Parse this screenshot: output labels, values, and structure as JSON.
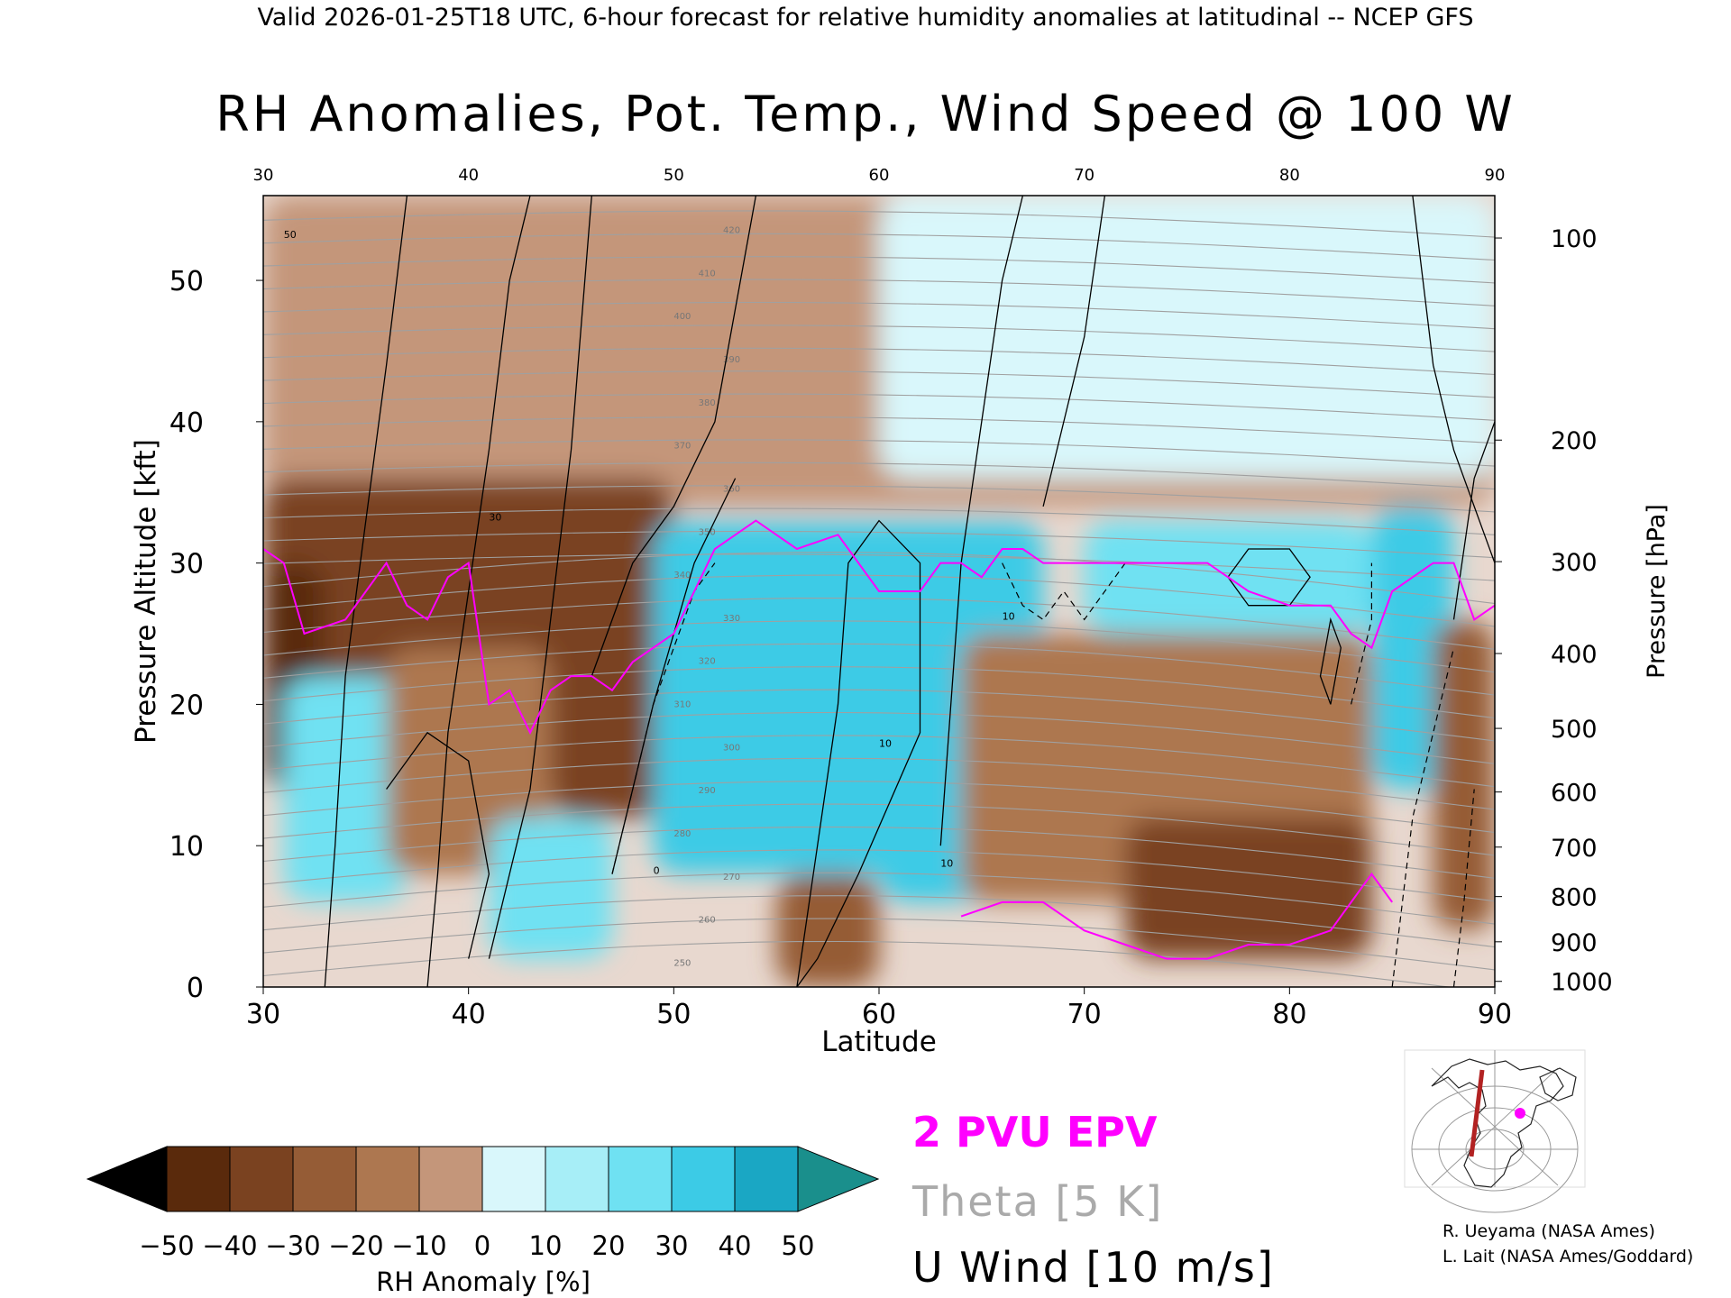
{
  "header": {
    "caption": "Valid 2026-01-25T18 UTC, 6-hour forecast for relative humidity anomalies at latitudinal -- NCEP GFS"
  },
  "chart_data": {
    "type": "heatmap",
    "title": "RH Anomalies, Pot. Temp., Wind Speed @ 100 W",
    "xlabel": "Latitude",
    "ylabel": "Pressure Altitude [kft]",
    "y2label": "Pressure [hPa]",
    "xlim": [
      30,
      90
    ],
    "ylim": [
      0,
      56
    ],
    "x_ticks": [
      30,
      40,
      50,
      60,
      70,
      80,
      90
    ],
    "y_ticks": [
      0,
      10,
      20,
      30,
      40,
      50
    ],
    "pressure_ticks": [
      {
        "hPa": "100",
        "kft": 53
      },
      {
        "hPa": "200",
        "kft": 38.7
      },
      {
        "hPa": "300",
        "kft": 30.1
      },
      {
        "hPa": "400",
        "kft": 23.6
      },
      {
        "hPa": "500",
        "kft": 18.3
      },
      {
        "hPa": "600",
        "kft": 13.8
      },
      {
        "hPa": "700",
        "kft": 9.9
      },
      {
        "hPa": "800",
        "kft": 6.4
      },
      {
        "hPa": "900",
        "kft": 3.2
      },
      {
        "hPa": "1000",
        "kft": 0.4
      }
    ],
    "colorbar": {
      "label": "RH Anomaly [%]",
      "tick_labels": [
        "−50",
        "−40",
        "−30",
        "−20",
        "−10",
        "0",
        "10",
        "20",
        "30",
        "40",
        "50"
      ],
      "colors": [
        "#5a2a0c",
        "#7a4220",
        "#955c36",
        "#ad7750",
        "#c4967a",
        "#e6cfc2",
        "#d9f7fb",
        "#a7eef7",
        "#6fe1f2",
        "#3ccbe6",
        "#1aa7c4"
      ],
      "under_color": "#000000",
      "over_color": "#1a8f8c"
    },
    "humidity_regions": [
      {
        "lat0": 30,
        "lat1": 90,
        "kft0": 34,
        "kft1": 56,
        "anomaly": -10
      },
      {
        "lat0": 60,
        "lat1": 90,
        "kft0": 36,
        "kft1": 56,
        "anomaly": 10
      },
      {
        "lat0": 30,
        "lat1": 50,
        "kft0": 20,
        "kft1": 36,
        "anomaly": -40
      },
      {
        "lat0": 30,
        "lat1": 33,
        "kft0": 14,
        "kft1": 30,
        "anomaly": -50
      },
      {
        "lat0": 31,
        "lat1": 37,
        "kft0": 6,
        "kft1": 22,
        "anomaly": 30
      },
      {
        "lat0": 36,
        "lat1": 44,
        "kft0": 8,
        "kft1": 24,
        "anomaly": -20
      },
      {
        "lat0": 41,
        "lat1": 47,
        "kft0": 2,
        "kft1": 12,
        "anomaly": 30
      },
      {
        "lat0": 44,
        "lat1": 53,
        "kft0": 12,
        "kft1": 24,
        "anomaly": -40
      },
      {
        "lat0": 49,
        "lat1": 63,
        "kft0": 8,
        "kft1": 33,
        "anomaly": 40
      },
      {
        "lat0": 55,
        "lat1": 60,
        "kft0": 0,
        "kft1": 8,
        "anomaly": -30
      },
      {
        "lat0": 60,
        "lat1": 68,
        "kft0": 6,
        "kft1": 33,
        "anomaly": 40
      },
      {
        "lat0": 64,
        "lat1": 84,
        "kft0": 6,
        "kft1": 25,
        "anomaly": -20
      },
      {
        "lat0": 72,
        "lat1": 84,
        "kft0": 2,
        "kft1": 12,
        "anomaly": -40
      },
      {
        "lat0": 70,
        "lat1": 84,
        "kft0": 25,
        "kft1": 33,
        "anomaly": 30
      },
      {
        "lat0": 84,
        "lat1": 88,
        "kft0": 14,
        "kft1": 34,
        "anomaly": 40
      },
      {
        "lat0": 87,
        "lat1": 90,
        "kft0": 4,
        "kft1": 26,
        "anomaly": -30
      }
    ],
    "theta_labels": [
      "250",
      "260",
      "270",
      "280",
      "290",
      "300",
      "310",
      "320",
      "330",
      "340",
      "350",
      "360",
      "370",
      "380",
      "390",
      "400",
      "410",
      "420"
    ],
    "wind_contour_labels": [
      "0",
      "10",
      "30",
      "50"
    ],
    "epv_line": {
      "name": "2 PVU EPV",
      "color": "#ff00ff",
      "points": [
        [
          30,
          31
        ],
        [
          31,
          30
        ],
        [
          32,
          25
        ],
        [
          34,
          26
        ],
        [
          36,
          30
        ],
        [
          37,
          27
        ],
        [
          38,
          26
        ],
        [
          39,
          29
        ],
        [
          40,
          30
        ],
        [
          41,
          20
        ],
        [
          42,
          21
        ],
        [
          43,
          18
        ],
        [
          44,
          21
        ],
        [
          45,
          22
        ],
        [
          46,
          22
        ],
        [
          47,
          21
        ],
        [
          48,
          23
        ],
        [
          50,
          25
        ],
        [
          51,
          28
        ],
        [
          52,
          31
        ],
        [
          54,
          33
        ],
        [
          56,
          31
        ],
        [
          58,
          32
        ],
        [
          60,
          28
        ],
        [
          62,
          28
        ],
        [
          63,
          30
        ],
        [
          64,
          30
        ],
        [
          65,
          29
        ],
        [
          66,
          31
        ],
        [
          67,
          31
        ],
        [
          68,
          30
        ],
        [
          70,
          30
        ],
        [
          72,
          30
        ],
        [
          74,
          30
        ],
        [
          76,
          30
        ],
        [
          78,
          28
        ],
        [
          80,
          27
        ],
        [
          82,
          27
        ],
        [
          83,
          25
        ],
        [
          84,
          24
        ],
        [
          85,
          28
        ],
        [
          87,
          30
        ],
        [
          88,
          30
        ],
        [
          89,
          26
        ],
        [
          90,
          27
        ]
      ]
    },
    "legend": {
      "epv": "2 PVU EPV",
      "theta": "Theta [5 K]",
      "wind": "U Wind [10 m/s]"
    }
  },
  "credits": {
    "line1": "R. Ueyama (NASA Ames)",
    "line2": "L. Lait (NASA Ames/Goddard)"
  },
  "inset_map": {
    "marker_color": "#ff00ff",
    "section_color": "#b22222"
  }
}
